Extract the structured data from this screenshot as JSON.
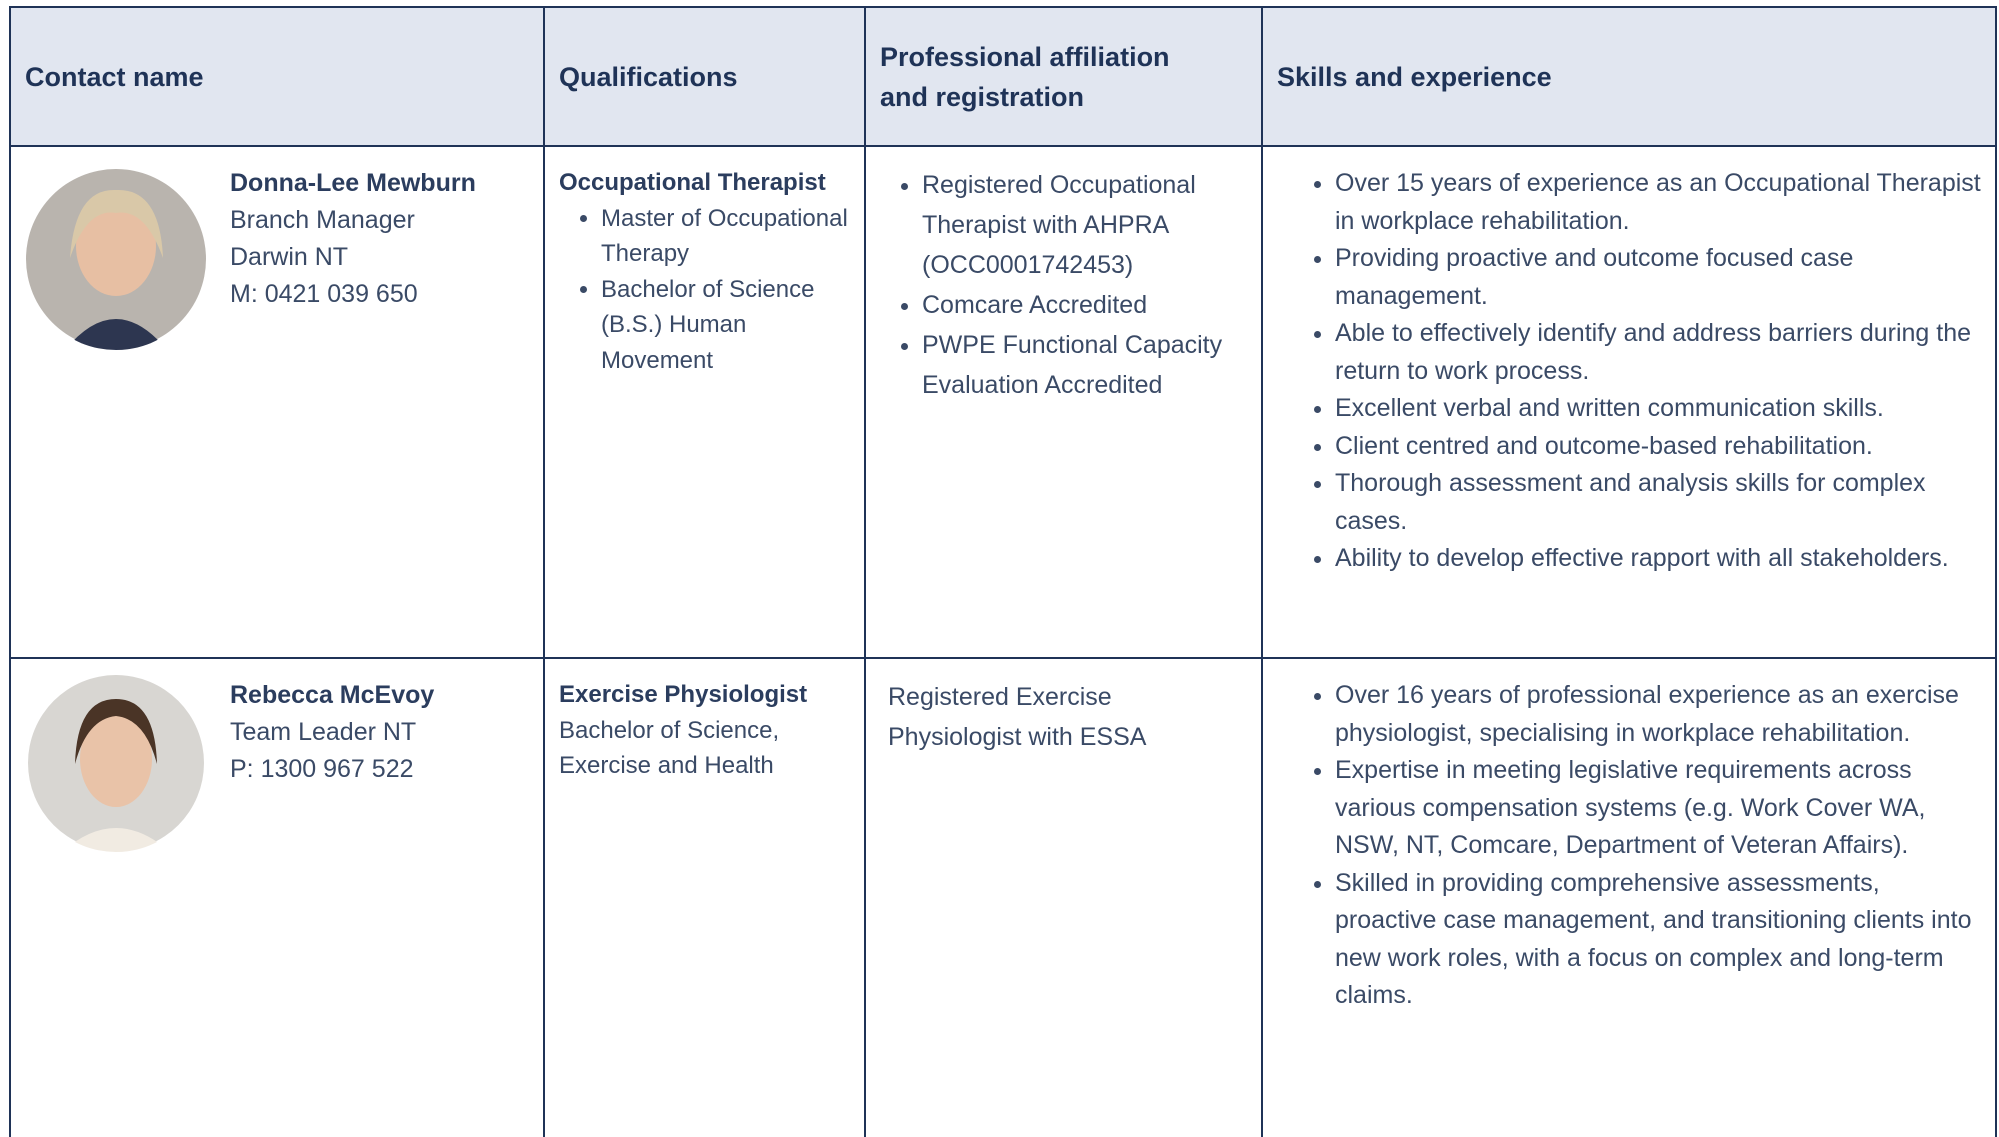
{
  "table": {
    "headers": [
      "Contact name",
      "Qualifications",
      "Professional affiliation and registration",
      "Skills and experience"
    ],
    "rows": [
      {
        "name": "Donna-Lee Mewburn",
        "details": [
          "Branch Manager",
          "Darwin NT",
          "M: 0421 039 650"
        ],
        "qualification_title": "Occupational Therapist",
        "qualifications": [
          "Master of Occupational Therapy",
          "Bachelor of Science (B.S.) Human Movement"
        ],
        "affiliations": [
          "Registered Occupational Therapist with AHPRA (OCC0001742453)",
          "Comcare Accredited",
          "PWPE Functional Capacity Evaluation Accredited"
        ],
        "skills": [
          "Over 15 years of experience as an Occupational Therapist in workplace rehabilitation.",
          "Providing proactive and outcome focused case management.",
          "Able to effectively identify and address barriers during the return to work process.",
          "Excellent verbal and written communication skills.",
          "Client centred and outcome-based rehabilitation.",
          "Thorough assessment and analysis skills for complex cases.",
          "Ability to develop effective rapport with all stakeholders."
        ]
      },
      {
        "name": "Rebecca McEvoy",
        "details": [
          "Team Leader NT",
          "P: 1300 967 522"
        ],
        "qualification_title": "Exercise Physiologist",
        "qualification_text": "Bachelor of Science, Exercise and Health",
        "affiliation_text": "Registered Exercise Physiologist with ESSA",
        "skills": [
          "Over 16 years of professional experience as an exercise physiologist, specialising in workplace rehabilitation.",
          "Expertise in meeting legislative requirements across various compensation systems (e.g. Work Cover WA, NSW, NT, Comcare, Department of Veteran Affairs).",
          "Skilled in providing comprehensive assessments, proactive case management, and transitioning clients into new work roles, with a focus on complex and long-term claims."
        ]
      }
    ]
  }
}
